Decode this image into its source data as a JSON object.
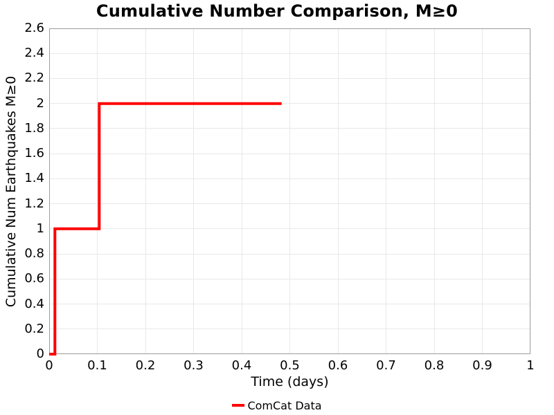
{
  "title": "Cumulative Number Comparison, M≥0",
  "axes": {
    "xlabel": "Time (days)",
    "ylabel": "Cumulative Num Earthquakes M≥0"
  },
  "legend": {
    "items": [
      {
        "label": "ComCat Data",
        "color": "#ff0000"
      }
    ]
  },
  "colors": {
    "series": "#ff0000",
    "grid": "#e8e8e8",
    "frame": "#9c9c9c",
    "text": "#000000",
    "background": "#ffffff"
  },
  "chart_data": {
    "type": "line",
    "subtype": "step-post",
    "title": "Cumulative Number Comparison, M≥0",
    "xlabel": "Time (days)",
    "ylabel": "Cumulative Num Earthquakes M≥0",
    "xlim": [
      0,
      1
    ],
    "ylim": [
      0,
      2.6
    ],
    "xticks": [
      0,
      0.1,
      0.2,
      0.3,
      0.4,
      0.5,
      0.6,
      0.7,
      0.8,
      0.9,
      1
    ],
    "yticks": [
      0,
      0.2,
      0.4,
      0.6,
      0.8,
      1,
      1.2,
      1.4,
      1.6,
      1.8,
      2,
      2.2,
      2.4,
      2.6
    ],
    "grid": true,
    "legend_position": "bottom-center",
    "series": [
      {
        "name": "ComCat Data",
        "color": "#ff0000",
        "line_width": 4,
        "points": [
          [
            0,
            0
          ],
          [
            0.012,
            0
          ],
          [
            0.012,
            1
          ],
          [
            0.104,
            1
          ],
          [
            0.104,
            2
          ],
          [
            0.483,
            2
          ]
        ]
      }
    ]
  }
}
